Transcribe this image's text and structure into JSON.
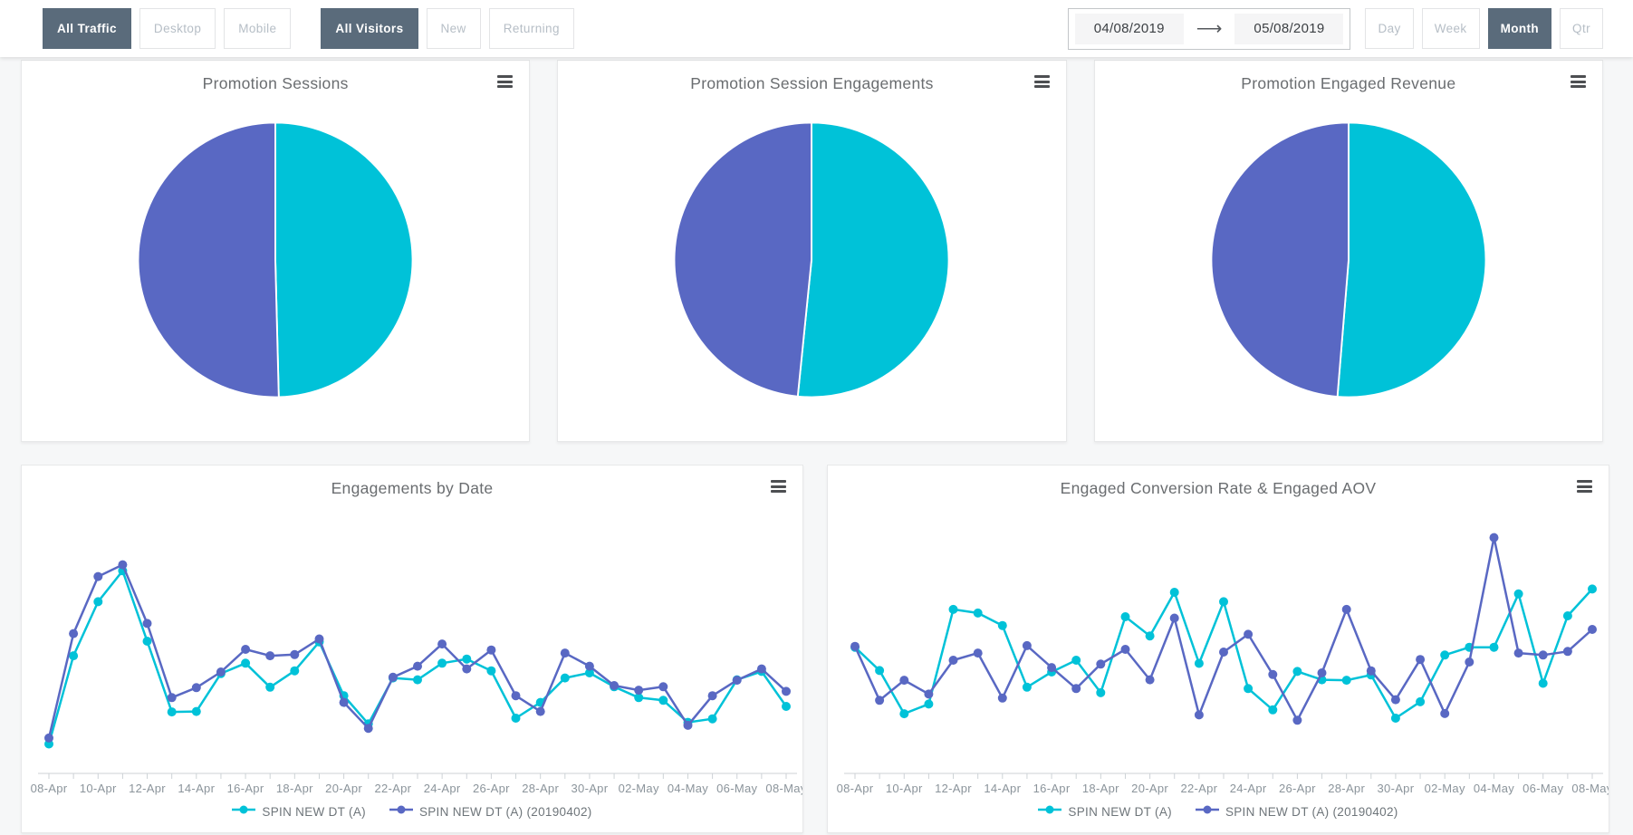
{
  "colors": {
    "series_a": "#00C2D8",
    "series_b": "#5968C3",
    "active_button_bg": "#5A6B7B",
    "axis_label": "#8B949B"
  },
  "toolbar": {
    "traffic_filters": [
      {
        "label": "All Traffic",
        "active": true
      },
      {
        "label": "Desktop",
        "active": false
      },
      {
        "label": "Mobile",
        "active": false
      }
    ],
    "visitor_filters": [
      {
        "label": "All Visitors",
        "active": true
      },
      {
        "label": "New",
        "active": false
      },
      {
        "label": "Returning",
        "active": false
      }
    ],
    "date_range": {
      "start": "04/08/2019",
      "end": "05/08/2019"
    },
    "granularity": [
      {
        "label": "Day",
        "active": false
      },
      {
        "label": "Week",
        "active": false
      },
      {
        "label": "Month",
        "active": true
      },
      {
        "label": "Qtr",
        "active": false
      }
    ]
  },
  "chart_data": [
    {
      "type": "pie",
      "title": "Promotion Sessions",
      "series": [
        {
          "name": "SPIN NEW DT (A)",
          "percent": 49.6,
          "color": "#00C2D8"
        },
        {
          "name": "SPIN NEW DT (A) (20190402)",
          "percent": 50.4,
          "color": "#5968C3"
        }
      ]
    },
    {
      "type": "pie",
      "title": "Promotion Session Engagements",
      "series": [
        {
          "name": "SPIN NEW DT (A)",
          "percent": 51.6,
          "color": "#00C2D8"
        },
        {
          "name": "SPIN NEW DT (A) (20190402)",
          "percent": 48.4,
          "color": "#5968C3"
        }
      ]
    },
    {
      "type": "pie",
      "title": "Promotion Engaged Revenue",
      "series": [
        {
          "name": "SPIN NEW DT (A)",
          "percent": 51.3,
          "color": "#00C2D8"
        },
        {
          "name": "SPIN NEW DT (A) (20190402)",
          "percent": 48.7,
          "color": "#5968C3"
        }
      ]
    },
    {
      "type": "line",
      "title": "Engagements by Date",
      "x": [
        "08-Apr",
        "09-Apr",
        "10-Apr",
        "11-Apr",
        "12-Apr",
        "13-Apr",
        "14-Apr",
        "15-Apr",
        "16-Apr",
        "17-Apr",
        "18-Apr",
        "19-Apr",
        "20-Apr",
        "21-Apr",
        "22-Apr",
        "23-Apr",
        "24-Apr",
        "25-Apr",
        "26-Apr",
        "27-Apr",
        "28-Apr",
        "29-Apr",
        "30-Apr",
        "01-May",
        "02-May",
        "03-May",
        "04-May",
        "05-May",
        "06-May",
        "07-May",
        "08-May"
      ],
      "label_every": 2,
      "ylim": [
        0,
        100
      ],
      "yaxis_visible": false,
      "legend_position": "bottom",
      "series": [
        {
          "name": "SPIN NEW DT (A)",
          "color": "#00C2D8",
          "values": [
            9.6,
            47.8,
            71.2,
            84.6,
            54.1,
            23.5,
            23.7,
            40.1,
            44.6,
            34.2,
            41.3,
            53.8,
            30.5,
            18.3,
            38.2,
            37.4,
            44.6,
            46.4,
            41.3,
            20.8,
            27.6,
            38.2,
            40.4,
            34.4,
            29.7,
            28.5,
            19.0,
            20.5,
            37.4,
            41.0,
            25.9
          ]
        },
        {
          "name": "SPIN NEW DT (A) (20190402)",
          "color": "#5968C3",
          "values": [
            12.2,
            57.4,
            82.1,
            87.2,
            61.8,
            29.7,
            34.0,
            40.8,
            50.6,
            47.8,
            48.3,
            55.1,
            27.6,
            16.4,
            38.5,
            43.3,
            52.9,
            42.1,
            50.3,
            30.5,
            23.7,
            49.0,
            43.3,
            34.9,
            32.9,
            34.4,
            17.7,
            30.5,
            37.2,
            42.1,
            32.4
          ]
        }
      ]
    },
    {
      "type": "line",
      "title": "Engaged Conversion Rate & Engaged AOV",
      "x": [
        "08-Apr",
        "09-Apr",
        "10-Apr",
        "11-Apr",
        "12-Apr",
        "13-Apr",
        "14-Apr",
        "15-Apr",
        "16-Apr",
        "17-Apr",
        "18-Apr",
        "19-Apr",
        "20-Apr",
        "21-Apr",
        "22-Apr",
        "23-Apr",
        "24-Apr",
        "25-Apr",
        "26-Apr",
        "27-Apr",
        "28-Apr",
        "29-Apr",
        "30-Apr",
        "01-May",
        "02-May",
        "03-May",
        "04-May",
        "05-May",
        "06-May",
        "07-May",
        "08-May"
      ],
      "label_every": 2,
      "ylim": [
        0,
        100
      ],
      "yaxis_visible": false,
      "legend_position": "bottom",
      "series": [
        {
          "name": "SPIN NEW DT (A)",
          "color": "#00C2D8",
          "values": [
            51.5,
            41.4,
            22.7,
            26.9,
            67.9,
            66.3,
            60.9,
            34.2,
            40.8,
            45.9,
            31.8,
            64.7,
            56.4,
            75.3,
            44.5,
            71.2,
            33.6,
            24.4,
            41.0,
            37.4,
            37.2,
            39.5,
            20.8,
            27.9,
            48.1,
            51.5,
            51.5,
            74.6,
            35.9,
            65.1,
            76.7
          ]
        },
        {
          "name": "SPIN NEW DT (A) (20190402)",
          "color": "#5968C3",
          "values": [
            51.9,
            28.5,
            37.2,
            31.2,
            45.9,
            49.0,
            29.5,
            52.2,
            42.7,
            33.6,
            44.2,
            50.6,
            37.4,
            64.1,
            22.2,
            49.4,
            57.1,
            39.7,
            19.9,
            40.4,
            67.9,
            41.3,
            28.8,
            46.2,
            22.8,
            45.1,
            99.0,
            49.0,
            48.1,
            49.7,
            59.2
          ]
        }
      ]
    }
  ]
}
